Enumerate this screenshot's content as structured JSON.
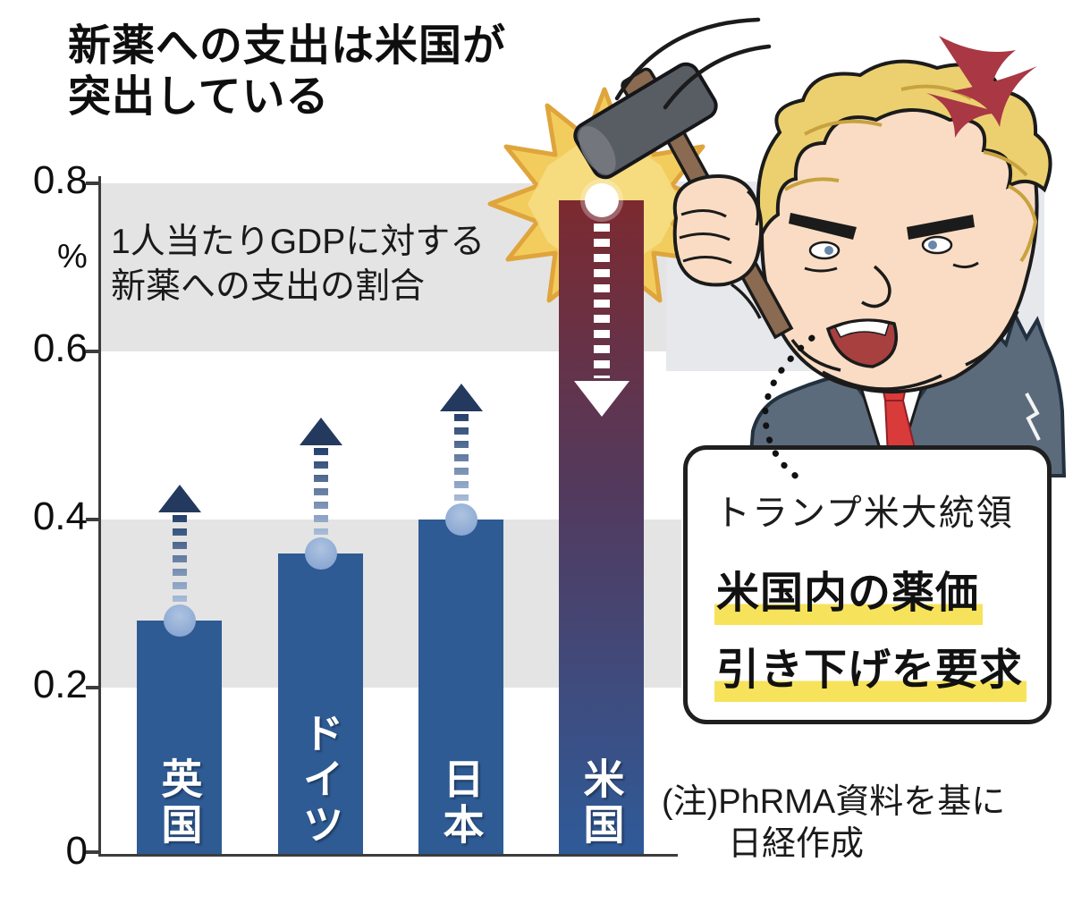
{
  "page": {
    "background": "#ffffff"
  },
  "header": {
    "title_line1": "新薬への支出は米国が",
    "title_line2": "突出している"
  },
  "chart_data": {
    "type": "bar",
    "title": "新薬への支出は米国が突出している",
    "ylabel": "%",
    "xlabel": "",
    "annotation_line1": "1人当たりGDPに対する",
    "annotation_line2": "新薬への支出の割合",
    "categories": [
      "英国",
      "ドイツ",
      "日本",
      "米国"
    ],
    "values": [
      0.28,
      0.36,
      0.4,
      0.78
    ],
    "ylim": [
      0,
      0.8
    ],
    "yticks": [
      "0.8",
      "0.6",
      "0.4",
      "0.2",
      "0"
    ],
    "grid_bands": [
      [
        0.6,
        0.8
      ],
      [
        0.2,
        0.4
      ]
    ],
    "arrow_directions": [
      "up",
      "up",
      "up",
      "down"
    ],
    "legend": "none",
    "grid": "banded-background"
  },
  "callout": {
    "speaker": "トランプ米大統領",
    "demand_line1": "米国内の薬価",
    "demand_line2": "引き下げを要求"
  },
  "footnote": {
    "line1": "(注)PhRMA資料を基に",
    "line2": "日経作成"
  },
  "colors": {
    "bar_blue": "#2e5b94",
    "us_bar_top": "#7c2a30",
    "us_bar_mid": "#523a5e",
    "us_bar_bottom": "#2e5b99",
    "band_gray": "#e4e4e4",
    "trump_backdrop_gray": "#e7e8ec",
    "arrow_navy": "#233a5e",
    "arrow_dash_light": "#a9bdda",
    "circle_blue": "#86a5d2",
    "starburst_gold": "#f2cd5e",
    "starburst_edge": "#dfa53c",
    "highlight_yellow": "#f7e35b",
    "anger_red": "#a93744",
    "tie_red": "#d93a3a",
    "axis_dark": "#3c3c3c"
  },
  "icons": {
    "hammer": "hammer-icon",
    "starburst": "impact-starburst-icon",
    "anger_mark": "anger-mark-icon",
    "up_arrow": "increase-arrow-icon",
    "down_arrow": "decrease-arrow-icon",
    "dotted_connector": "dotted-connector-icon"
  }
}
